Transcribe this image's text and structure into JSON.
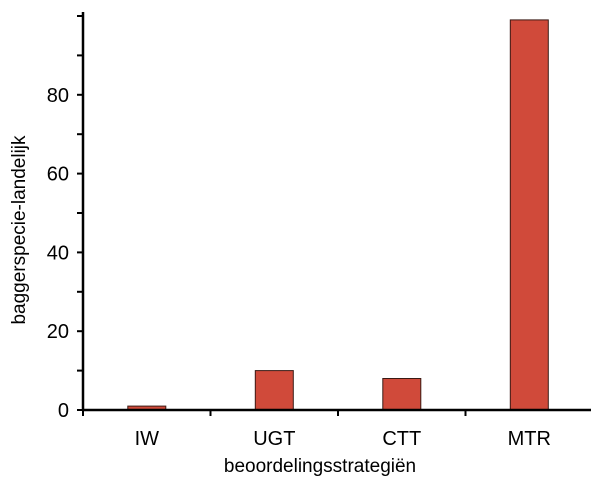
{
  "chart_data": {
    "type": "bar",
    "categories": [
      "IW",
      "UGT",
      "CTT",
      "MTR"
    ],
    "values": [
      1,
      10,
      8,
      99
    ],
    "title": "",
    "xlabel": "beoordelingsstrategiën",
    "ylabel": "baggerspecie-landelijk",
    "ylim": [
      0,
      100
    ],
    "yticks": [
      0,
      20,
      40,
      60,
      80
    ],
    "grid": false,
    "legend": "none",
    "bar_color": "#d04a3a",
    "bar_edge_color": "#3a1a14",
    "axis_color": "#000000"
  }
}
